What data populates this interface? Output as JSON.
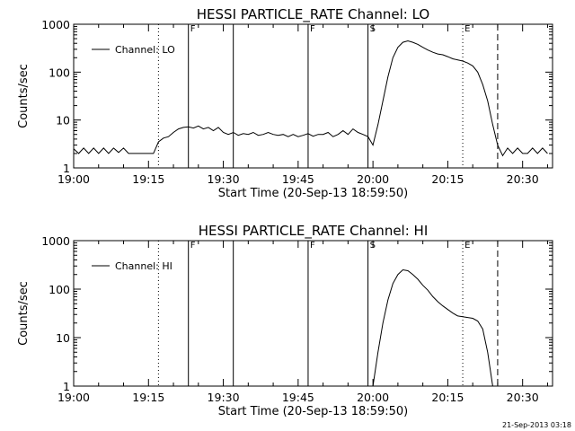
{
  "stamp": "21-Sep-2013 03:18",
  "chart_data": [
    {
      "type": "line",
      "title": "HESSI PARTICLE_RATE Channel: LO",
      "xlabel": "Start Time (20-Sep-13 18:59:50)",
      "ylabel": "Counts/sec",
      "yscale": "log",
      "ylim": [
        1,
        1000
      ],
      "xlim": [
        "19:00",
        "20:36"
      ],
      "xticks": [
        "19:00",
        "19:15",
        "19:30",
        "19:45",
        "20:00",
        "20:15",
        "20:30"
      ],
      "yticks": [
        "1",
        "10",
        "100",
        "1000"
      ],
      "legend": "top-left",
      "series": [
        {
          "name": "Channel: LO",
          "x": [
            "19:00",
            "19:01",
            "19:02",
            "19:03",
            "19:04",
            "19:05",
            "19:06",
            "19:07",
            "19:08",
            "19:09",
            "19:10",
            "19:11",
            "19:12",
            "19:13",
            "19:14",
            "19:15",
            "19:16",
            "19:17",
            "19:18",
            "19:19",
            "19:20",
            "19:21",
            "19:22",
            "19:23",
            "19:24",
            "19:25",
            "19:26",
            "19:27",
            "19:28",
            "19:29",
            "19:30",
            "19:31",
            "19:32",
            "19:33",
            "19:34",
            "19:35",
            "19:36",
            "19:37",
            "19:38",
            "19:39",
            "19:40",
            "19:41",
            "19:42",
            "19:43",
            "19:44",
            "19:45",
            "19:46",
            "19:47",
            "19:48",
            "19:49",
            "19:50",
            "19:51",
            "19:52",
            "19:53",
            "19:54",
            "19:55",
            "19:56",
            "19:57",
            "19:58",
            "19:59",
            "20:00",
            "20:01",
            "20:02",
            "20:03",
            "20:04",
            "20:05",
            "20:06",
            "20:07",
            "20:08",
            "20:09",
            "20:10",
            "20:11",
            "20:12",
            "20:13",
            "20:14",
            "20:15",
            "20:16",
            "20:17",
            "20:18",
            "20:19",
            "20:20",
            "20:21",
            "20:22",
            "20:23",
            "20:24",
            "20:25",
            "20:26",
            "20:27",
            "20:28",
            "20:29",
            "20:30",
            "20:31",
            "20:32",
            "20:33",
            "20:34",
            "20:35"
          ],
          "values": [
            2.5,
            2.0,
            2.6,
            2.0,
            2.6,
            2.0,
            2.6,
            2.0,
            2.6,
            2.1,
            2.6,
            2.0,
            2.0,
            2.0,
            2.0,
            2.0,
            2.0,
            3.5,
            4.2,
            4.5,
            5.5,
            6.5,
            7.0,
            7.2,
            6.8,
            7.5,
            6.5,
            7.0,
            6.0,
            7.0,
            5.5,
            5.0,
            5.5,
            4.8,
            5.2,
            5.0,
            5.5,
            4.8,
            5.0,
            5.5,
            5.0,
            4.8,
            5.0,
            4.5,
            5.0,
            4.5,
            4.8,
            5.2,
            4.6,
            5.0,
            5.0,
            5.5,
            4.5,
            5.0,
            6.0,
            5.0,
            6.5,
            5.5,
            5.0,
            4.5,
            3.0,
            8.0,
            25.0,
            80.0,
            200.0,
            330.0,
            420.0,
            450.0,
            420.0,
            380.0,
            330.0,
            290.0,
            260.0,
            240.0,
            230.0,
            210.0,
            190.0,
            180.0,
            170.0,
            155.0,
            135.0,
            100.0,
            55.0,
            25.0,
            8.0,
            3.0,
            1.8,
            2.6,
            2.0,
            2.6,
            2.0,
            2.0,
            2.6,
            2.0,
            2.6,
            2.0
          ]
        }
      ],
      "vlines": [
        {
          "x": "19:17",
          "style": "dotted",
          "label": ""
        },
        {
          "x": "19:23",
          "style": "solid",
          "label": "F"
        },
        {
          "x": "19:32",
          "style": "solid",
          "label": ""
        },
        {
          "x": "19:47",
          "style": "solid",
          "label": "F"
        },
        {
          "x": "19:59",
          "style": "solid",
          "label": "S"
        },
        {
          "x": "20:18",
          "style": "dotted",
          "label": "E"
        },
        {
          "x": "20:25",
          "style": "dashed",
          "label": ""
        },
        {
          "x": "20:36",
          "style": "dotted",
          "label": ""
        }
      ]
    },
    {
      "type": "line",
      "title": "HESSI PARTICLE_RATE Channel: HI",
      "xlabel": "Start Time (20-Sep-13 18:59:50)",
      "ylabel": "Counts/sec",
      "yscale": "log",
      "ylim": [
        1,
        1000
      ],
      "xlim": [
        "19:00",
        "20:36"
      ],
      "xticks": [
        "19:00",
        "19:15",
        "19:30",
        "19:45",
        "20:00",
        "20:15",
        "20:30"
      ],
      "yticks": [
        "1",
        "10",
        "100",
        "1000"
      ],
      "legend": "top-left",
      "series": [
        {
          "name": "Channel: HI",
          "x": [
            "20:00",
            "20:01",
            "20:02",
            "20:03",
            "20:04",
            "20:05",
            "20:06",
            "20:07",
            "20:08",
            "20:09",
            "20:10",
            "20:11",
            "20:12",
            "20:13",
            "20:14",
            "20:15",
            "20:16",
            "20:17",
            "20:18",
            "20:19",
            "20:20",
            "20:21",
            "20:22",
            "20:23",
            "20:24"
          ],
          "values": [
            1.0,
            5.0,
            20.0,
            60.0,
            130.0,
            200.0,
            250.0,
            240.0,
            200.0,
            160.0,
            120.0,
            95.0,
            70.0,
            55.0,
            45.0,
            38.0,
            32.0,
            28.0,
            27.0,
            26.0,
            25.0,
            22.0,
            15.0,
            5.0,
            1.0
          ]
        }
      ],
      "vlines": [
        {
          "x": "19:17",
          "style": "dotted",
          "label": ""
        },
        {
          "x": "19:23",
          "style": "solid",
          "label": "F"
        },
        {
          "x": "19:32",
          "style": "solid",
          "label": ""
        },
        {
          "x": "19:47",
          "style": "solid",
          "label": "F"
        },
        {
          "x": "19:59",
          "style": "solid",
          "label": "S"
        },
        {
          "x": "20:18",
          "style": "dotted",
          "label": "E"
        },
        {
          "x": "20:25",
          "style": "dashed",
          "label": ""
        },
        {
          "x": "20:36",
          "style": "dotted",
          "label": ""
        }
      ]
    }
  ]
}
